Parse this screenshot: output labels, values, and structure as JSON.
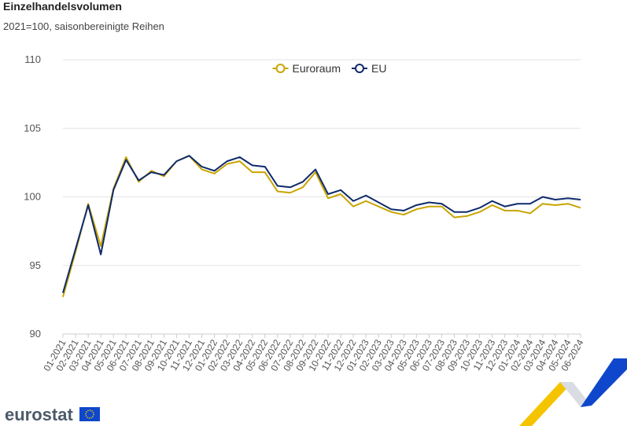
{
  "chart_data": {
    "type": "line",
    "title": "Einzelhandelsvolumen",
    "subtitle": "2021=100, saisonbereinigte Reihen",
    "categories": [
      "01-2021",
      "02-2021",
      "03-2021",
      "04-2021",
      "05-2021",
      "06-2021",
      "07-2021",
      "08-2021",
      "09-2021",
      "10-2021",
      "11-2021",
      "12-2021",
      "01-2022",
      "02-2022",
      "03-2022",
      "04-2022",
      "05-2022",
      "06-2022",
      "07-2022",
      "08-2022",
      "09-2022",
      "10-2022",
      "11-2022",
      "12-2022",
      "01-2023",
      "02-2023",
      "03-2023",
      "04-2023",
      "05-2023",
      "06-2023",
      "07-2023",
      "08-2023",
      "09-2023",
      "10-2023",
      "11-2023",
      "12-2023",
      "01-2024",
      "02-2024",
      "03-2024",
      "04-2024",
      "05-2024",
      "06-2024"
    ],
    "series": [
      {
        "name": "Euroraum",
        "color": "#c9a400",
        "values": [
          92.7,
          96.0,
          99.5,
          96.4,
          100.6,
          102.9,
          101.1,
          101.9,
          101.5,
          102.6,
          103.0,
          102.0,
          101.7,
          102.4,
          102.6,
          101.8,
          101.8,
          100.4,
          100.3,
          100.7,
          101.8,
          99.9,
          100.2,
          99.3,
          99.7,
          99.3,
          98.9,
          98.7,
          99.1,
          99.3,
          99.3,
          98.5,
          98.6,
          98.9,
          99.4,
          99.0,
          99.0,
          98.8,
          99.5,
          99.4,
          99.5,
          99.2
        ]
      },
      {
        "name": "EU",
        "color": "#0e2a6b",
        "values": [
          93.0,
          96.2,
          99.4,
          95.8,
          100.5,
          102.7,
          101.2,
          101.8,
          101.6,
          102.6,
          103.0,
          102.2,
          101.9,
          102.6,
          102.9,
          102.3,
          102.2,
          100.8,
          100.7,
          101.1,
          102.0,
          100.2,
          100.5,
          99.7,
          100.1,
          99.6,
          99.1,
          99.0,
          99.4,
          99.6,
          99.5,
          98.9,
          98.9,
          99.2,
          99.7,
          99.3,
          99.5,
          99.5,
          100.0,
          99.8,
          99.9,
          99.8
        ]
      }
    ],
    "ylim": [
      90,
      110
    ],
    "yticks": [
      90,
      95,
      100,
      105,
      110
    ],
    "grid": true,
    "legend": "top"
  },
  "footer": {
    "logo": "eurostat"
  }
}
